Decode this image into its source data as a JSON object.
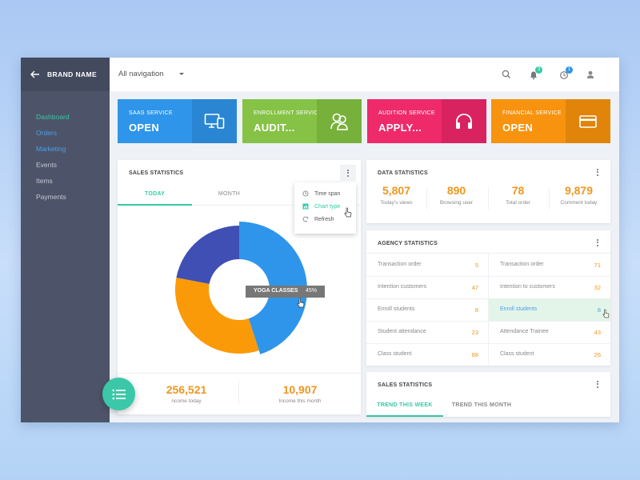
{
  "sidebar": {
    "brand": "BRAND NAME",
    "items": [
      {
        "label": "Dashboard",
        "color": "#34c9a5"
      },
      {
        "label": "Orders",
        "color": "#4d9de8"
      },
      {
        "label": "Marketing",
        "color": "#4d9de8"
      },
      {
        "label": "Events",
        "color": "#c3c7d2"
      },
      {
        "label": "Items",
        "color": "#c3c7d2"
      },
      {
        "label": "Payments",
        "color": "#c3c7d2"
      }
    ]
  },
  "topbar": {
    "nav_select": "All navigation",
    "notifications_count": "3",
    "history_count": "1",
    "icons": [
      "search-icon",
      "bell-icon",
      "clock-icon",
      "user-icon"
    ]
  },
  "services": [
    {
      "label": "SAAS  SERVICE",
      "value": "OPEN",
      "color": "#2e95ea",
      "icon_color": "#2a86d3",
      "icon": "devices-icon"
    },
    {
      "label": "ENROLLMENT SERVICE",
      "value": "AUDIT...",
      "color": "#86c246",
      "icon_color": "#78b03c",
      "icon": "users-icon"
    },
    {
      "label": "AUDITION SERVICE",
      "value": "APPLY...",
      "color": "#ee2a6b",
      "icon_color": "#d82360",
      "icon": "headphones-icon"
    },
    {
      "label": "FINANCIAL SERVICE",
      "value": "OPEN",
      "color": "#f7930e",
      "icon_color": "#e0850a",
      "icon": "card-icon"
    }
  ],
  "sales": {
    "title": "SALES STATISTICS",
    "tabs": [
      "TODAY",
      "MONTH"
    ],
    "active_tab": "TODAY",
    "accent": "#34c9a5",
    "menu": {
      "items": [
        "Time span",
        "Chart type",
        "Refresh"
      ],
      "active": "Chart type"
    },
    "tooltip": {
      "label": "YOGA CLASSES",
      "value": "45%"
    },
    "income_today": {
      "value": "256,521",
      "label": "ncome today"
    },
    "income_month": {
      "value": "10,907",
      "label": "Income this month"
    }
  },
  "chart_data": {
    "type": "pie",
    "style": "donut",
    "categories": [
      "YOGA CLASSES",
      "",
      ""
    ],
    "values": [
      45,
      33,
      22
    ],
    "colors": [
      "#2e95ea",
      "#fb9a08",
      "#3f4fb3"
    ],
    "highlighted": "YOGA CLASSES"
  },
  "data_stats": {
    "title": "DATA STATISTICS",
    "items": [
      {
        "value": "5,807",
        "label": "Today's views"
      },
      {
        "value": "890",
        "label": "Browsing user"
      },
      {
        "value": "78",
        "label": "Total order"
      },
      {
        "value": "9,879",
        "label": "Comment today"
      }
    ]
  },
  "agency": {
    "title": "AGENCY STATISTICS",
    "left": [
      {
        "label": "Transaction order",
        "value": "5"
      },
      {
        "label": "Intention customers",
        "value": "47"
      },
      {
        "label": "Enroll students",
        "value": "8"
      },
      {
        "label": "Student attendance",
        "value": "23"
      },
      {
        "label": "Class student",
        "value": "88"
      }
    ],
    "right": [
      {
        "label": "Transaction order",
        "value": "71"
      },
      {
        "label": "Intention to customers",
        "value": "32"
      },
      {
        "label": "Enroll students",
        "value": "8"
      },
      {
        "label": "Attendance Trainee",
        "value": "43"
      },
      {
        "label": "Class student",
        "value": "26"
      }
    ],
    "highlight_color": "#e3f5e8",
    "highlight_text": "#4d9de8"
  },
  "sales_trend": {
    "title": "SALES STATISTICS",
    "tabs": [
      "TREND THIS WEEK",
      "TREND THIS MONTH"
    ],
    "active_tab": "TREND THIS WEEK"
  }
}
